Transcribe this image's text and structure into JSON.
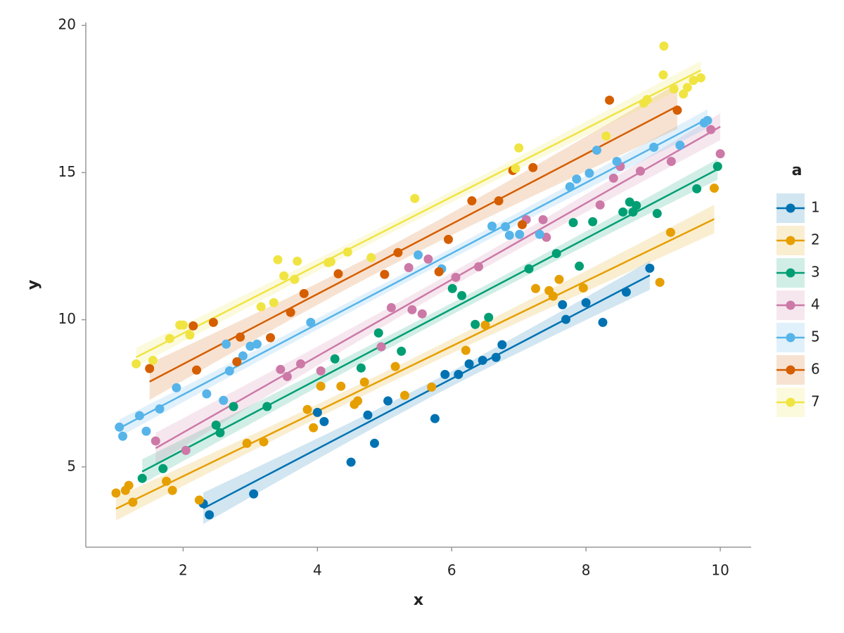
{
  "chart_data": {
    "type": "scatter",
    "x_label": "x",
    "y_label": "y",
    "legend_title": "a",
    "legend": "right",
    "regression": "linear",
    "grid": false,
    "xlim": [
      0.55,
      10.46
    ],
    "ylim": [
      2.27,
      20.1
    ],
    "xticks": [
      2,
      4,
      6,
      8,
      10
    ],
    "yticks": [
      5,
      10,
      15,
      20
    ],
    "series": [
      {
        "name": "1",
        "color": "#0072b2",
        "x": [
          2.3,
          2.39,
          3.05,
          4.0,
          4.1,
          4.5,
          4.75,
          4.85,
          5.05,
          5.75,
          5.9,
          6.1,
          6.26,
          6.46,
          6.66,
          6.75,
          7.65,
          7.7,
          8.0,
          8.25,
          8.6,
          8.95
        ],
        "values": [
          3.75,
          3.37,
          4.08,
          6.85,
          6.54,
          5.16,
          6.76,
          5.8,
          7.24,
          6.64,
          8.14,
          8.14,
          8.5,
          8.62,
          8.72,
          9.15,
          10.51,
          10.01,
          10.58,
          9.91,
          10.94,
          11.75
        ]
      },
      {
        "name": "2",
        "color": "#e69f00",
        "x": [
          1.0,
          1.14,
          1.19,
          1.25,
          1.75,
          1.84,
          2.24,
          2.95,
          3.2,
          3.85,
          3.94,
          4.05,
          4.35,
          4.55,
          4.6,
          4.7,
          5.16,
          5.3,
          5.7,
          6.21,
          6.5,
          7.25,
          7.45,
          7.51,
          7.6,
          7.96,
          9.1,
          9.26,
          9.91
        ],
        "values": [
          4.11,
          4.2,
          4.37,
          3.8,
          4.51,
          4.2,
          3.87,
          5.8,
          5.85,
          6.95,
          6.33,
          7.74,
          7.74,
          7.12,
          7.24,
          7.88,
          8.41,
          7.43,
          7.71,
          8.96,
          9.82,
          11.06,
          10.99,
          10.8,
          11.37,
          11.08,
          11.27,
          12.97,
          14.47
        ]
      },
      {
        "name": "3",
        "color": "#009e73",
        "x": [
          1.39,
          1.7,
          2.49,
          2.55,
          2.75,
          3.25,
          4.26,
          4.65,
          4.91,
          5.25,
          6.01,
          6.15,
          6.35,
          6.55,
          7.15,
          7.56,
          7.81,
          7.9,
          8.1,
          8.55,
          8.65,
          8.7,
          8.75,
          9.06,
          9.65,
          9.96
        ],
        "values": [
          4.61,
          4.94,
          6.42,
          6.16,
          7.05,
          7.05,
          8.67,
          8.36,
          9.55,
          8.93,
          11.06,
          10.82,
          9.84,
          10.08,
          11.73,
          12.25,
          13.3,
          11.82,
          13.33,
          13.66,
          14.0,
          13.66,
          13.88,
          13.61,
          14.45,
          15.21
        ]
      },
      {
        "name": "4",
        "color": "#cc79a7",
        "x": [
          1.59,
          2.04,
          3.45,
          3.55,
          3.75,
          4.05,
          4.95,
          5.1,
          5.36,
          5.41,
          5.56,
          5.65,
          6.06,
          6.4,
          7.11,
          7.36,
          7.41,
          8.21,
          8.41,
          8.51,
          8.81,
          9.27,
          9.86,
          10.0
        ],
        "values": [
          5.88,
          5.56,
          8.31,
          8.07,
          8.5,
          8.26,
          9.08,
          10.41,
          11.77,
          10.34,
          10.2,
          12.06,
          11.44,
          11.8,
          13.4,
          13.4,
          12.8,
          13.9,
          14.81,
          15.21,
          15.05,
          15.38,
          16.46,
          15.64
        ]
      },
      {
        "name": "5",
        "color": "#56b4e9",
        "x": [
          1.05,
          1.1,
          1.35,
          1.45,
          1.65,
          1.9,
          2.35,
          2.6,
          2.64,
          2.69,
          2.89,
          3.0,
          3.1,
          3.9,
          5.5,
          5.85,
          6.6,
          6.8,
          6.86,
          7.01,
          7.31,
          7.76,
          7.86,
          8.05,
          8.16,
          8.46,
          9.01,
          9.4,
          9.76,
          9.81
        ],
        "values": [
          6.35,
          6.04,
          6.74,
          6.21,
          6.97,
          7.69,
          7.48,
          7.26,
          9.17,
          8.26,
          8.77,
          9.1,
          9.17,
          9.91,
          12.2,
          11.73,
          13.18,
          13.16,
          12.87,
          12.9,
          12.9,
          14.52,
          14.78,
          14.98,
          15.76,
          15.38,
          15.86,
          15.93,
          16.69,
          16.77
        ]
      },
      {
        "name": "6",
        "color": "#d55e00",
        "x": [
          1.5,
          2.15,
          2.2,
          2.45,
          2.8,
          2.85,
          3.3,
          3.6,
          3.8,
          4.31,
          5.0,
          5.2,
          5.81,
          5.95,
          6.3,
          6.7,
          6.91,
          7.05,
          7.21,
          8.35,
          9.36
        ],
        "values": [
          8.34,
          9.79,
          8.29,
          9.91,
          8.57,
          9.41,
          9.39,
          10.25,
          10.89,
          11.56,
          11.54,
          12.28,
          11.63,
          12.73,
          14.04,
          14.04,
          15.07,
          13.23,
          15.17,
          17.46,
          17.12
        ]
      },
      {
        "name": "7",
        "color": "#f0e442",
        "x": [
          1.3,
          1.55,
          1.8,
          1.95,
          2.0,
          2.1,
          3.16,
          3.35,
          3.41,
          3.5,
          3.66,
          3.7,
          4.16,
          4.2,
          4.45,
          4.8,
          5.45,
          6.95,
          7.0,
          8.3,
          8.86,
          8.91,
          9.15,
          9.16,
          9.31,
          9.45,
          9.51,
          9.6,
          9.71
        ],
        "values": [
          8.5,
          8.62,
          9.36,
          9.82,
          9.82,
          9.48,
          10.44,
          10.58,
          12.04,
          11.49,
          11.37,
          11.99,
          11.94,
          11.97,
          12.3,
          12.11,
          14.12,
          15.14,
          15.84,
          16.24,
          17.36,
          17.48,
          18.32,
          19.3,
          17.84,
          17.67,
          17.89,
          18.13,
          18.22
        ]
      }
    ]
  }
}
